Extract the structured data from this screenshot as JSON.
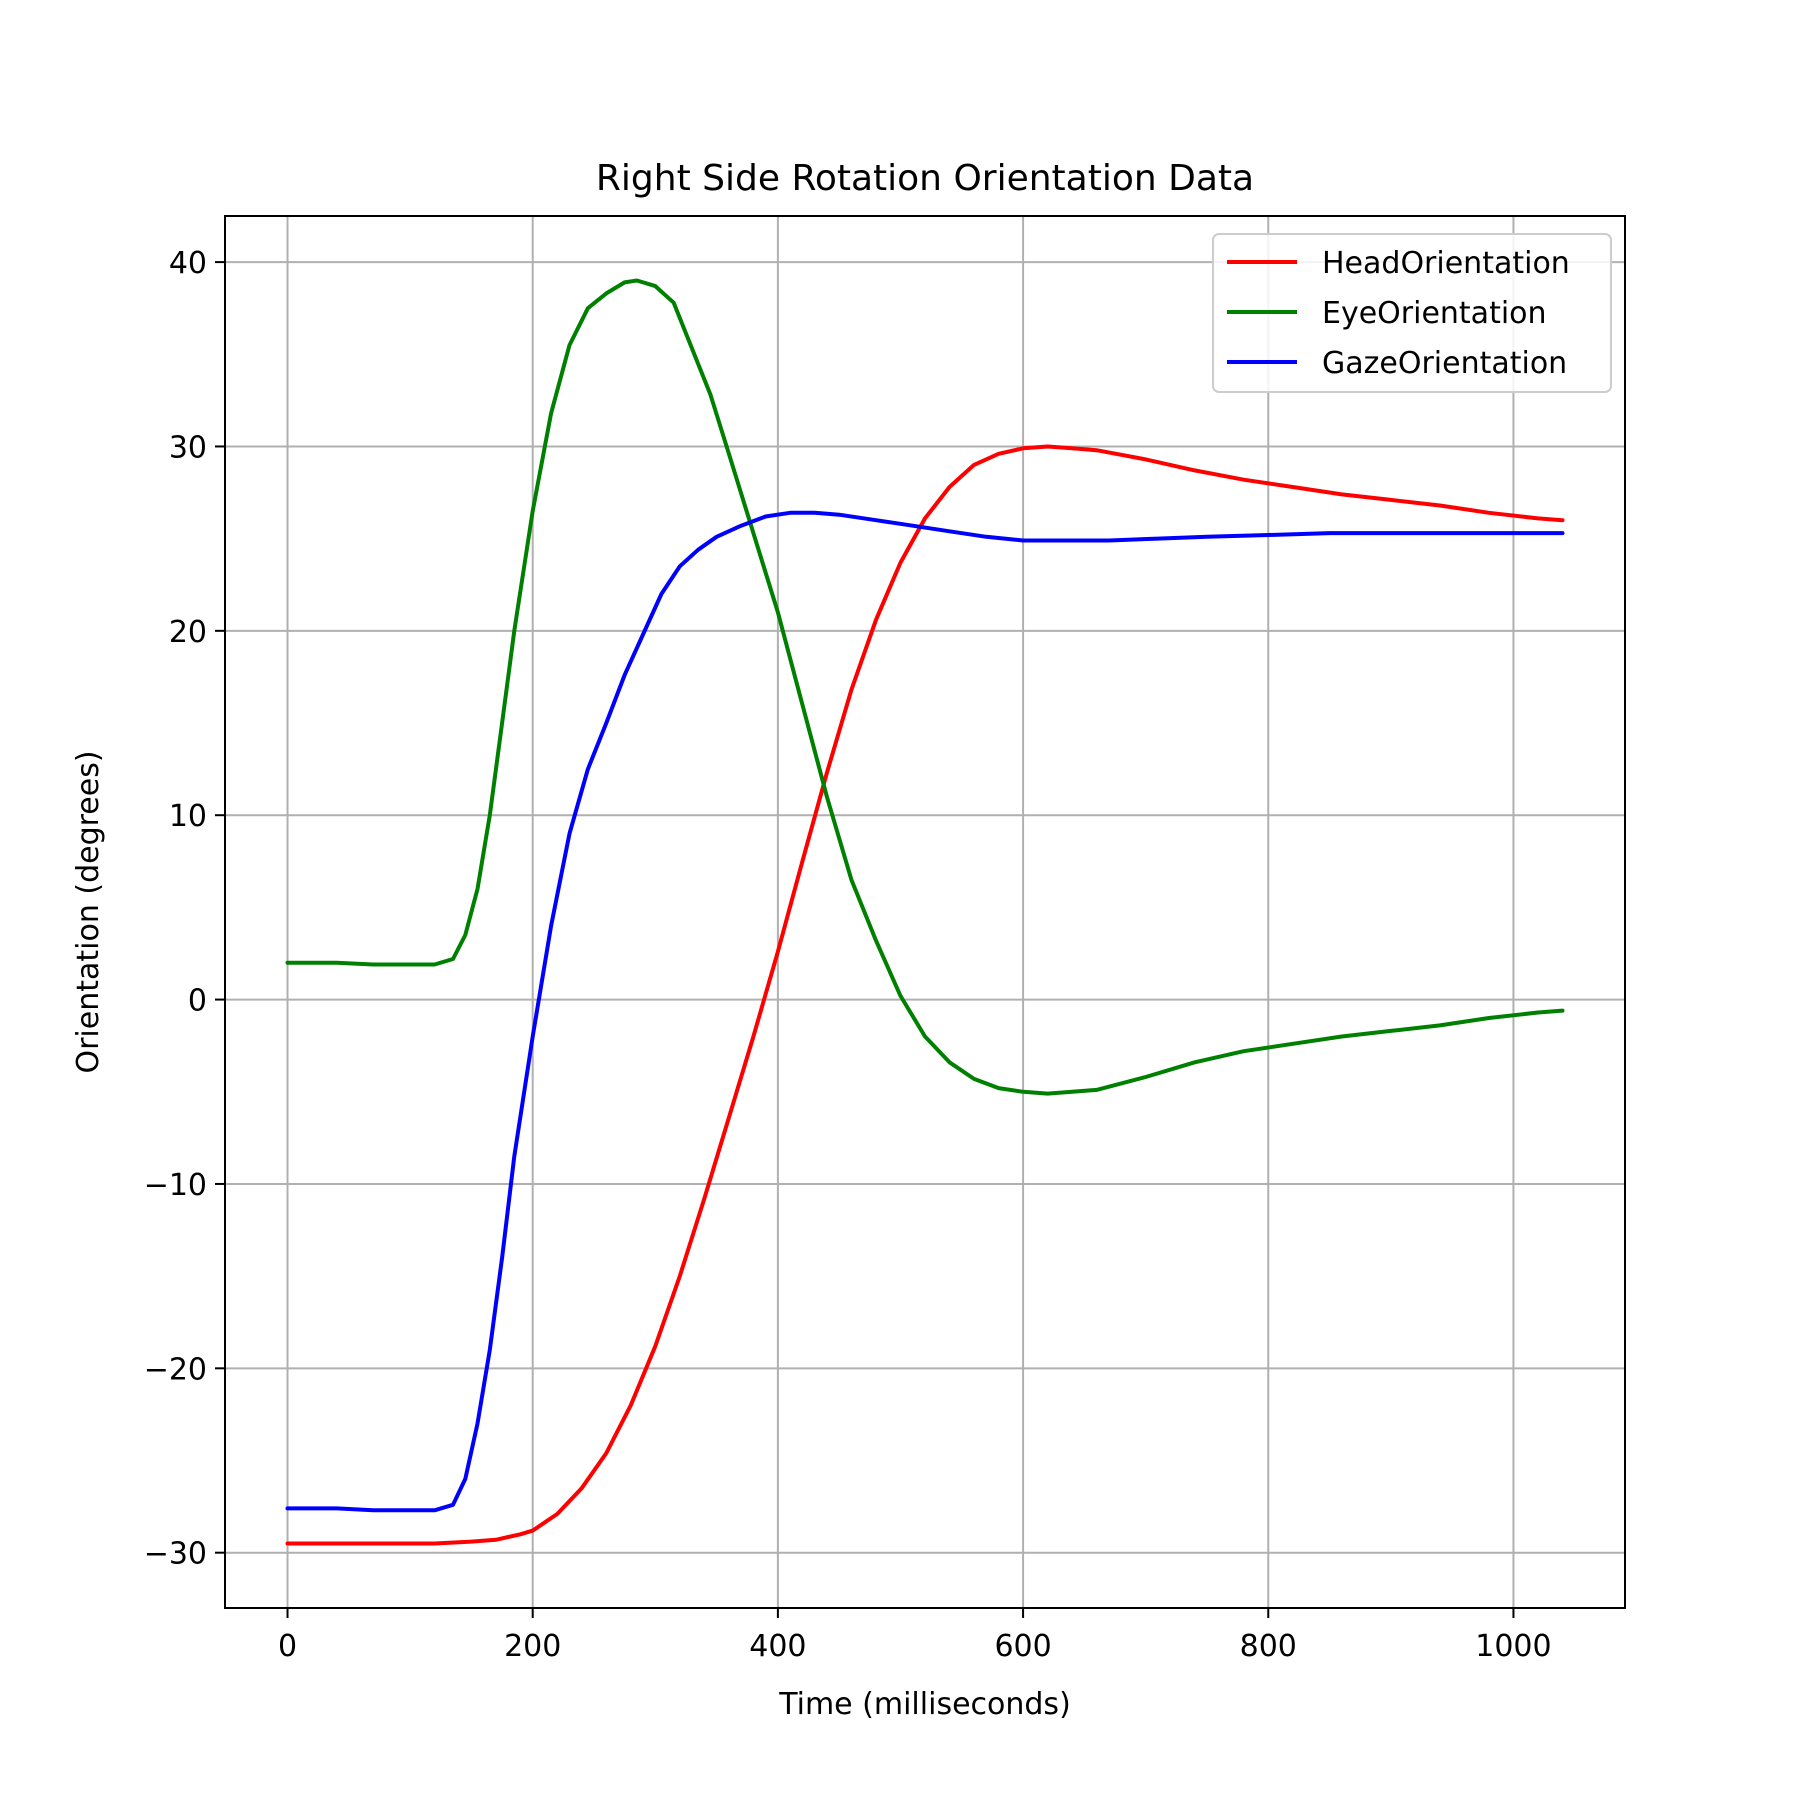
{
  "chart_data": {
    "type": "line",
    "title": "Right Side Rotation Orientation Data",
    "xlabel": "Time (milliseconds)",
    "ylabel": "Orientation (degrees)",
    "xlim": [
      -51,
      1091
    ],
    "ylim": [
      -33,
      42.5
    ],
    "x_ticks": [
      0,
      200,
      400,
      600,
      800,
      1000
    ],
    "x_tick_labels": [
      "0",
      "200",
      "400",
      "600",
      "800",
      "1000"
    ],
    "y_ticks": [
      -30,
      -20,
      -10,
      0,
      10,
      20,
      30,
      40
    ],
    "y_tick_labels": [
      "−30",
      "−20",
      "−10",
      "0",
      "10",
      "20",
      "30",
      "40"
    ],
    "grid": true,
    "legend_position": "top-right",
    "series": [
      {
        "name": "HeadOrientation",
        "color": "#ff0000",
        "points": [
          [
            0,
            -29.5
          ],
          [
            40,
            -29.5
          ],
          [
            80,
            -29.5
          ],
          [
            120,
            -29.5
          ],
          [
            150,
            -29.4
          ],
          [
            170,
            -29.3
          ],
          [
            190,
            -29.0
          ],
          [
            200,
            -28.8
          ],
          [
            220,
            -27.9
          ],
          [
            240,
            -26.5
          ],
          [
            260,
            -24.6
          ],
          [
            280,
            -22.0
          ],
          [
            300,
            -18.8
          ],
          [
            320,
            -15.0
          ],
          [
            340,
            -10.8
          ],
          [
            360,
            -6.4
          ],
          [
            380,
            -2.0
          ],
          [
            400,
            2.6
          ],
          [
            420,
            7.5
          ],
          [
            440,
            12.3
          ],
          [
            460,
            16.8
          ],
          [
            480,
            20.6
          ],
          [
            500,
            23.7
          ],
          [
            520,
            26.1
          ],
          [
            540,
            27.8
          ],
          [
            560,
            29.0
          ],
          [
            580,
            29.6
          ],
          [
            600,
            29.9
          ],
          [
            620,
            30.0
          ],
          [
            640,
            29.9
          ],
          [
            660,
            29.8
          ],
          [
            700,
            29.3
          ],
          [
            740,
            28.7
          ],
          [
            780,
            28.2
          ],
          [
            820,
            27.8
          ],
          [
            860,
            27.4
          ],
          [
            900,
            27.1
          ],
          [
            940,
            26.8
          ],
          [
            980,
            26.4
          ],
          [
            1020,
            26.1
          ],
          [
            1040,
            26.0
          ]
        ]
      },
      {
        "name": "EyeOrientation",
        "color": "#008000",
        "points": [
          [
            0,
            2.0
          ],
          [
            40,
            2.0
          ],
          [
            70,
            1.9
          ],
          [
            100,
            1.9
          ],
          [
            120,
            1.9
          ],
          [
            135,
            2.2
          ],
          [
            145,
            3.5
          ],
          [
            155,
            6.0
          ],
          [
            165,
            10.0
          ],
          [
            175,
            15.0
          ],
          [
            185,
            20.0
          ],
          [
            200,
            26.5
          ],
          [
            215,
            31.8
          ],
          [
            230,
            35.5
          ],
          [
            245,
            37.5
          ],
          [
            260,
            38.3
          ],
          [
            275,
            38.9
          ],
          [
            285,
            39.0
          ],
          [
            300,
            38.7
          ],
          [
            315,
            37.8
          ],
          [
            330,
            35.3
          ],
          [
            345,
            32.8
          ],
          [
            360,
            29.6
          ],
          [
            380,
            25.3
          ],
          [
            400,
            21.0
          ],
          [
            420,
            16.0
          ],
          [
            440,
            11.0
          ],
          [
            460,
            6.5
          ],
          [
            480,
            3.2
          ],
          [
            500,
            0.2
          ],
          [
            520,
            -2.0
          ],
          [
            540,
            -3.4
          ],
          [
            560,
            -4.3
          ],
          [
            580,
            -4.8
          ],
          [
            600,
            -5.0
          ],
          [
            620,
            -5.1
          ],
          [
            640,
            -5.0
          ],
          [
            660,
            -4.9
          ],
          [
            700,
            -4.2
          ],
          [
            740,
            -3.4
          ],
          [
            780,
            -2.8
          ],
          [
            820,
            -2.4
          ],
          [
            860,
            -2.0
          ],
          [
            900,
            -1.7
          ],
          [
            940,
            -1.4
          ],
          [
            980,
            -1.0
          ],
          [
            1020,
            -0.7
          ],
          [
            1040,
            -0.6
          ]
        ]
      },
      {
        "name": "GazeOrientation",
        "color": "#0000ff",
        "points": [
          [
            0,
            -27.6
          ],
          [
            40,
            -27.6
          ],
          [
            70,
            -27.7
          ],
          [
            100,
            -27.7
          ],
          [
            120,
            -27.7
          ],
          [
            135,
            -27.4
          ],
          [
            145,
            -26.0
          ],
          [
            155,
            -23.0
          ],
          [
            165,
            -19.0
          ],
          [
            175,
            -14.0
          ],
          [
            185,
            -8.5
          ],
          [
            200,
            -2.0
          ],
          [
            215,
            4.0
          ],
          [
            230,
            9.0
          ],
          [
            245,
            12.5
          ],
          [
            260,
            15.0
          ],
          [
            275,
            17.6
          ],
          [
            290,
            19.8
          ],
          [
            305,
            22.0
          ],
          [
            320,
            23.5
          ],
          [
            335,
            24.4
          ],
          [
            350,
            25.1
          ],
          [
            370,
            25.7
          ],
          [
            390,
            26.2
          ],
          [
            410,
            26.4
          ],
          [
            430,
            26.4
          ],
          [
            450,
            26.3
          ],
          [
            480,
            26.0
          ],
          [
            510,
            25.7
          ],
          [
            540,
            25.4
          ],
          [
            570,
            25.1
          ],
          [
            600,
            24.9
          ],
          [
            630,
            24.9
          ],
          [
            670,
            24.9
          ],
          [
            710,
            25.0
          ],
          [
            750,
            25.1
          ],
          [
            800,
            25.2
          ],
          [
            850,
            25.3
          ],
          [
            900,
            25.3
          ],
          [
            950,
            25.3
          ],
          [
            1000,
            25.3
          ],
          [
            1040,
            25.3
          ]
        ]
      }
    ]
  }
}
